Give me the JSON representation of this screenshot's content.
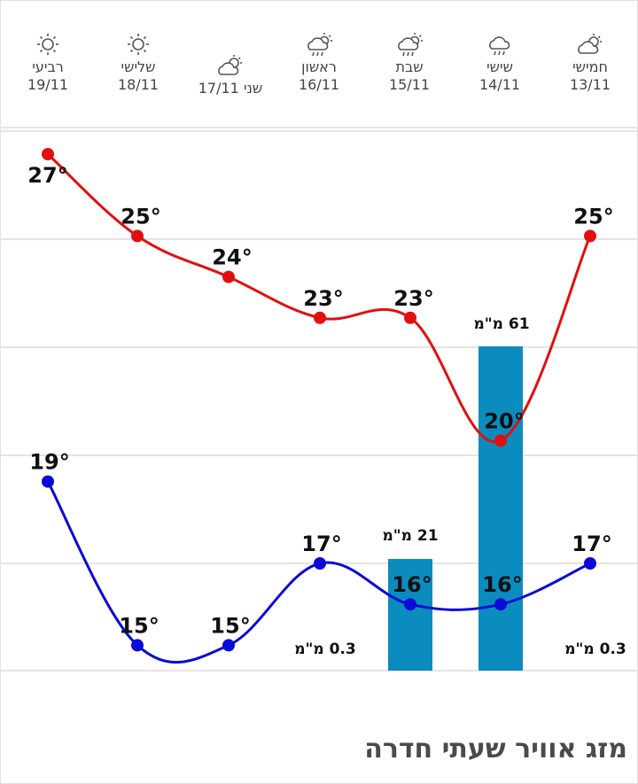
{
  "header": {
    "days": [
      {
        "name": "חמישי",
        "date": "13/11",
        "icon": "partly-cloudy-icon"
      },
      {
        "name": "שישי",
        "date": "14/11",
        "icon": "rain-icon"
      },
      {
        "name": "שבת",
        "date": "15/11",
        "icon": "sun-cloud-rain-icon"
      },
      {
        "name": "ראשון",
        "date": "16/11",
        "icon": "sun-cloud-rain-icon"
      },
      {
        "name": "שני",
        "date": "17/11",
        "icon": "partly-cloudy-icon"
      },
      {
        "name": "שלישי",
        "date": "18/11",
        "icon": "sun-icon"
      },
      {
        "name": "רביעי",
        "date": "19/11",
        "icon": "sun-icon"
      }
    ]
  },
  "footer": {
    "title": "מזג אוויר שעתי חדרה"
  },
  "chart_data": {
    "type": "line",
    "categories": [
      "13/11",
      "14/11",
      "15/11",
      "16/11",
      "17/11",
      "18/11",
      "19/11"
    ],
    "series": [
      {
        "name": "",
        "color": "#e01010",
        "values": [
          25,
          20,
          23,
          23,
          24,
          25,
          27
        ]
      },
      {
        "name": "",
        "color": "#0a0ad8",
        "values": [
          17,
          16,
          16,
          17,
          15,
          15,
          19
        ]
      }
    ],
    "precipitation": {
      "color": "#0a8cbf",
      "values": [
        0.3,
        61,
        21,
        0.3,
        0,
        0,
        0
      ],
      "labels": [
        "0.3 מ\"מ",
        "61 מ\"מ",
        "21 מ\"מ",
        "0.3 מ\"מ",
        "",
        "",
        ""
      ]
    },
    "temp_labels": {
      "high": [
        "25°",
        "20°",
        "23°",
        "23°",
        "24°",
        "25°",
        "27°"
      ],
      "low": [
        "17°",
        "16°",
        "16°",
        "17°",
        "15°",
        "15°",
        "19°"
      ]
    },
    "grid": true,
    "legend": "none"
  }
}
